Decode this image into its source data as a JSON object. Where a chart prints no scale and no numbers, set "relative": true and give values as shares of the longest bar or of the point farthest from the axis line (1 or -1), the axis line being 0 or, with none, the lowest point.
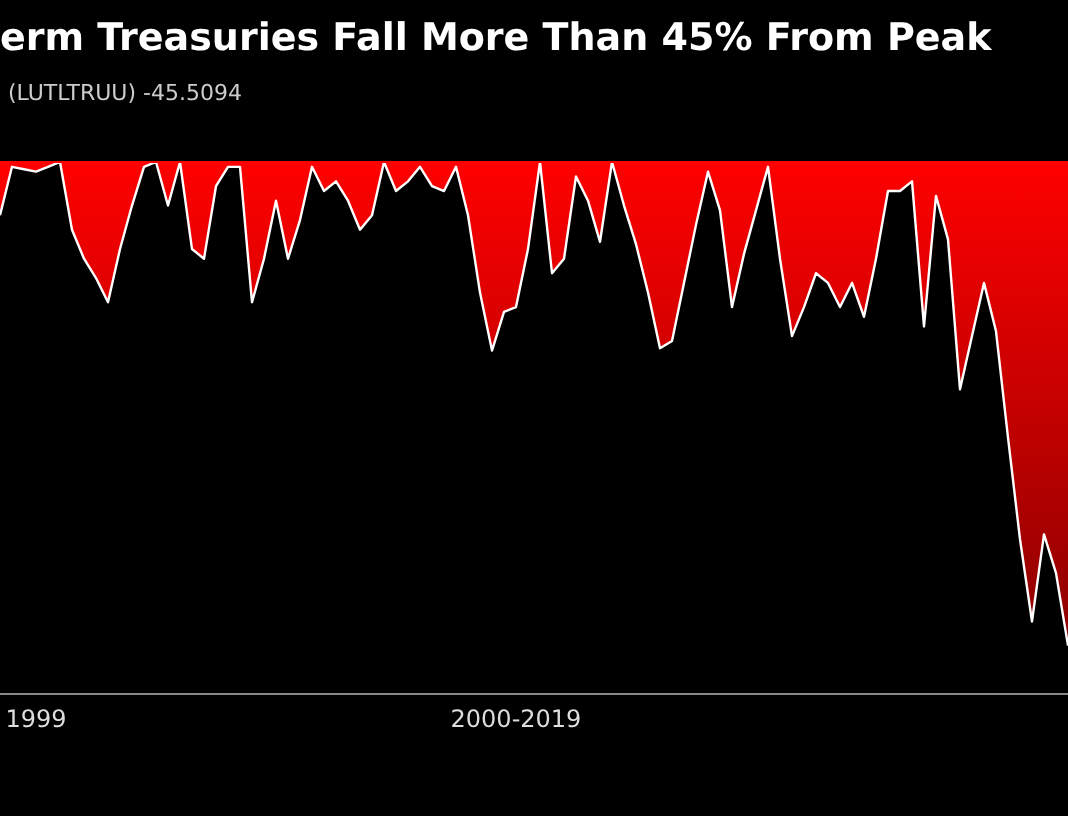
{
  "chart_data": {
    "type": "area",
    "title": "erm Treasuries Fall More Than 45% From Peak",
    "subtitle": "(LUTLTRUU) -45.5094",
    "relative": true,
    "tick_labels": "x",
    "categories": [
      null,
      null,
      null,
      "1999",
      null,
      null,
      null,
      null,
      null,
      null,
      null,
      null,
      null,
      null,
      null,
      null,
      null,
      null,
      null,
      null,
      null,
      null,
      null,
      null,
      null,
      null,
      null,
      null,
      null,
      null,
      null,
      null,
      null,
      null,
      null,
      null,
      null,
      null,
      null,
      null,
      null,
      null,
      null,
      "2000-2019",
      null,
      null,
      null,
      null,
      null,
      null,
      null,
      null,
      null,
      null,
      null,
      null,
      null,
      null,
      null,
      null,
      null,
      null,
      null,
      null,
      null,
      null,
      null,
      null,
      null,
      null,
      null,
      null,
      null,
      null,
      null,
      null,
      null,
      null,
      null,
      null,
      null,
      null,
      null,
      null,
      null,
      null,
      null,
      null,
      null,
      null
    ],
    "series": [
      {
        "color": "#ff0000",
        "values": [
          -0.11,
          -0.01,
          -0.015,
          -0.02,
          -0.01,
          0,
          -0.14,
          -0.2,
          -0.24,
          -0.29,
          -0.18,
          -0.09,
          -0.01,
          0,
          -0.09,
          0,
          -0.18,
          -0.2,
          -0.05,
          -0.01,
          -0.01,
          -0.29,
          -0.2,
          -0.08,
          -0.2,
          -0.12,
          -0.01,
          -0.06,
          -0.04,
          -0.08,
          -0.14,
          -0.11,
          0,
          -0.06,
          -0.04,
          -0.01,
          -0.05,
          -0.06,
          -0.01,
          -0.11,
          -0.27,
          -0.39,
          -0.31,
          -0.3,
          -0.18,
          0,
          -0.23,
          -0.2,
          -0.03,
          -0.08,
          -0.165,
          0,
          -0.09,
          -0.17,
          -0.27,
          -0.385,
          -0.37,
          -0.25,
          -0.13,
          -0.02,
          -0.1,
          -0.3,
          -0.19,
          -0.1,
          -0.01,
          -0.2,
          -0.36,
          -0.3,
          -0.23,
          -0.25,
          -0.3,
          -0.25,
          -0.32,
          -0.2,
          -0.06,
          -0.06,
          -0.04,
          -0.34,
          -0.07,
          -0.16,
          -0.47,
          -0.36,
          -0.25,
          -0.35,
          -0.57,
          -0.78,
          -0.95,
          -0.77,
          -0.85,
          -1
        ]
      }
    ]
  }
}
